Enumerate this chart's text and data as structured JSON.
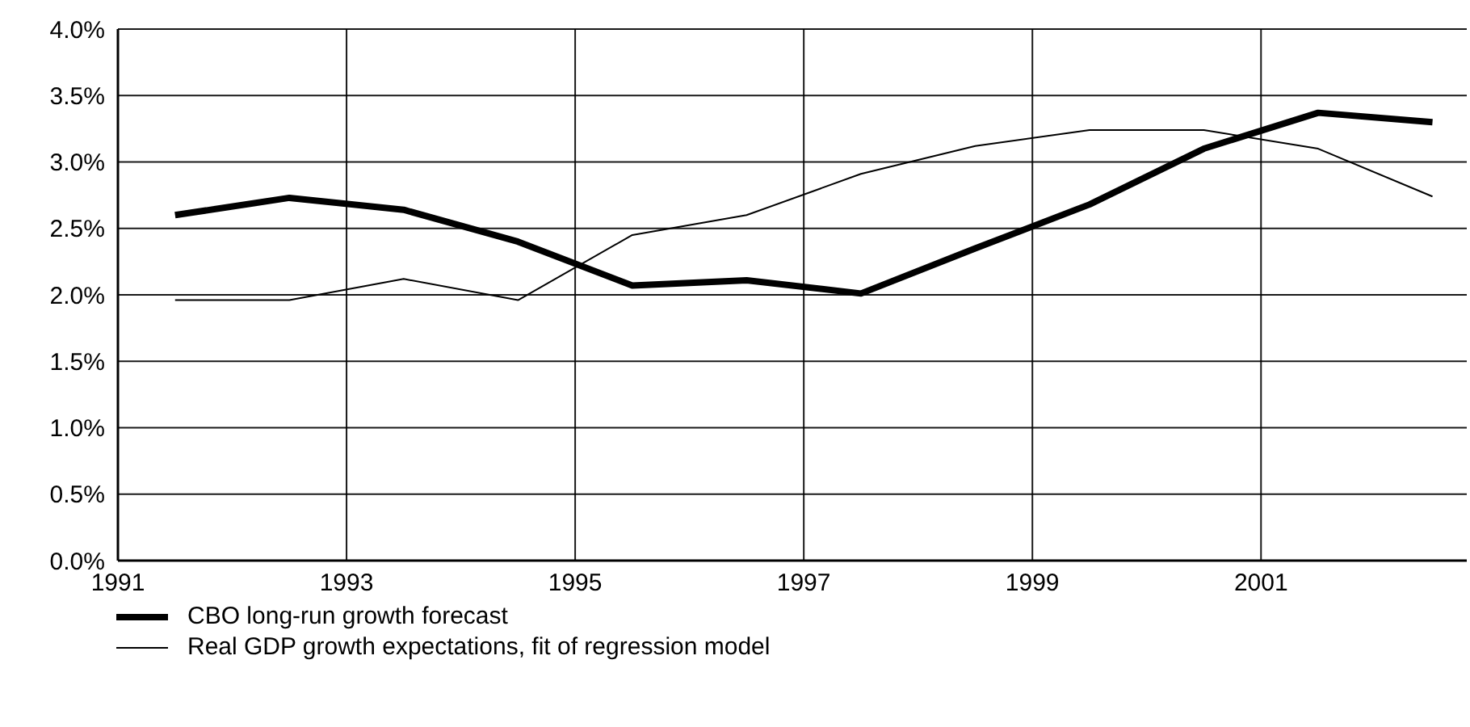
{
  "chart_data": {
    "type": "line",
    "x": [
      1991.5,
      1992.5,
      1993.5,
      1994.5,
      1995.5,
      1996.5,
      1997.5,
      1998.5,
      1999.5,
      2000.5,
      2001.5,
      2002.5
    ],
    "series": [
      {
        "name": "CBO long-run growth forecast",
        "color": "#000000",
        "values": [
          2.6,
          2.73,
          2.64,
          2.4,
          2.07,
          2.11,
          2.01,
          2.35,
          2.68,
          3.1,
          3.37,
          3.3
        ]
      },
      {
        "name": "Real GDP growth expectations, fit of regression model",
        "color": "#000000",
        "values": [
          1.96,
          1.96,
          2.12,
          1.96,
          2.45,
          2.6,
          2.91,
          3.12,
          3.24,
          3.24,
          3.1,
          2.74
        ]
      }
    ],
    "xlim": [
      1991,
      2002.8
    ],
    "xticks": [
      1991,
      1993,
      1995,
      1997,
      1999,
      2001
    ],
    "ylim": [
      0,
      4
    ],
    "yticks": [
      {
        "value": 0,
        "label": "0.0%"
      },
      {
        "value": 0.5,
        "label": "0.5%"
      },
      {
        "value": 1,
        "label": "1.0%"
      },
      {
        "value": 1.5,
        "label": "1.5%"
      },
      {
        "value": 2,
        "label": "2.0%"
      },
      {
        "value": 2.5,
        "label": "2.5%"
      },
      {
        "value": 3,
        "label": "3.0%"
      },
      {
        "value": 3.5,
        "label": "3.5%"
      },
      {
        "value": 4,
        "label": "4.0%"
      }
    ],
    "grid": true,
    "legend": "bottom",
    "marker": "none",
    "line_style": "solid"
  }
}
